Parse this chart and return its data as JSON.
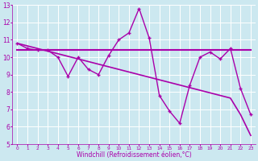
{
  "xlabel": "Windchill (Refroidissement éolien,°C)",
  "bg_color": "#cce8f0",
  "grid_color": "#ffffff",
  "line_color": "#aa00aa",
  "x_hours": [
    0,
    1,
    2,
    3,
    4,
    5,
    6,
    7,
    8,
    9,
    10,
    11,
    12,
    13,
    14,
    15,
    16,
    17,
    18,
    19,
    20,
    21,
    22,
    23
  ],
  "zigzag_y": [
    10.8,
    10.5,
    10.4,
    10.4,
    10.0,
    8.9,
    10.0,
    9.3,
    9.0,
    10.1,
    11.0,
    11.4,
    12.8,
    11.1,
    7.8,
    6.9,
    6.2,
    8.4,
    10.0,
    10.3,
    9.9,
    10.5,
    8.2,
    6.7
  ],
  "flat_y": [
    10.4,
    10.4,
    10.4,
    10.4,
    10.4,
    10.4,
    10.4,
    10.4,
    10.4,
    10.4,
    10.4,
    10.4,
    10.4,
    10.4,
    10.4,
    10.4,
    10.4,
    10.4,
    10.4,
    10.4,
    10.4,
    10.4,
    10.4,
    10.4
  ],
  "slope_y": [
    10.8,
    10.65,
    10.5,
    10.35,
    10.2,
    10.05,
    9.9,
    9.75,
    9.6,
    9.45,
    9.3,
    9.15,
    9.0,
    8.85,
    8.7,
    8.55,
    8.4,
    8.25,
    8.1,
    7.95,
    7.8,
    7.65,
    6.7,
    5.5
  ],
  "ylim": [
    5,
    13
  ],
  "xlim": [
    -0.5,
    23.5
  ],
  "yticks": [
    5,
    6,
    7,
    8,
    9,
    10,
    11,
    12,
    13
  ],
  "xticks": [
    0,
    1,
    2,
    3,
    4,
    5,
    6,
    7,
    8,
    9,
    10,
    11,
    12,
    13,
    14,
    15,
    16,
    17,
    18,
    19,
    20,
    21,
    22,
    23
  ],
  "xlabel_fontsize": 5.5,
  "tick_fontsize": 5,
  "linewidth_zigzag": 1.0,
  "linewidth_flat": 1.5,
  "linewidth_slope": 1.2
}
